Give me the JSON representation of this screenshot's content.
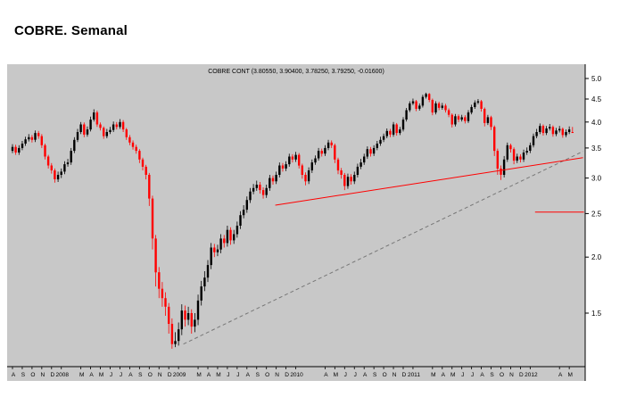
{
  "page": {
    "title": "COBRE. Semanal"
  },
  "chart": {
    "colors": {
      "panel_bg": "#c8c8c8",
      "up": "#000000",
      "down": "#ff0000",
      "axis": "#000000",
      "trend_red": "#ff0000",
      "trend_dashed": "#777777"
    }
  },
  "chart_data": {
    "type": "candlestick",
    "timeframe": "weekly",
    "scale": "logarithmic",
    "title": "COBRE CONT (3.80550, 3.90400, 3.78250, 3.79250, -0.01600)",
    "instrument": "COBRE CONT",
    "last_quote": {
      "open": 3.8055,
      "high": 3.904,
      "low": 3.7825,
      "close": 3.7925,
      "change": -0.016
    },
    "y_ticks": [
      5.0,
      4.5,
      4.0,
      3.5,
      3.0,
      2.5,
      2.0,
      1.5
    ],
    "ylim": [
      1.2,
      5.2
    ],
    "start_month": "2007-08",
    "end_month": "2012-05",
    "candles_per_month": 3,
    "x_labels": [
      [
        "A",
        0
      ],
      [
        "S",
        1
      ],
      [
        "O",
        2
      ],
      [
        "N",
        3
      ],
      [
        "D",
        4
      ],
      [
        "2008",
        5
      ],
      [
        "M",
        7
      ],
      [
        "A",
        8
      ],
      [
        "M",
        9
      ],
      [
        "J",
        10
      ],
      [
        "J",
        11
      ],
      [
        "A",
        12
      ],
      [
        "S",
        13
      ],
      [
        "O",
        14
      ],
      [
        "N",
        15
      ],
      [
        "D",
        16
      ],
      [
        "2009",
        17
      ],
      [
        "M",
        19
      ],
      [
        "A",
        20
      ],
      [
        "M",
        21
      ],
      [
        "J",
        22
      ],
      [
        "J",
        23
      ],
      [
        "A",
        24
      ],
      [
        "S",
        25
      ],
      [
        "O",
        26
      ],
      [
        "N",
        27
      ],
      [
        "D",
        28
      ],
      [
        "2010",
        29
      ],
      [
        "A",
        32
      ],
      [
        "M",
        33
      ],
      [
        "J",
        34
      ],
      [
        "J",
        35
      ],
      [
        "A",
        36
      ],
      [
        "S",
        37
      ],
      [
        "O",
        38
      ],
      [
        "N",
        39
      ],
      [
        "D",
        40
      ],
      [
        "2011",
        41
      ],
      [
        "M",
        43
      ],
      [
        "A",
        44
      ],
      [
        "M",
        45
      ],
      [
        "J",
        46
      ],
      [
        "J",
        47
      ],
      [
        "A",
        48
      ],
      [
        "S",
        49
      ],
      [
        "O",
        50
      ],
      [
        "N",
        51
      ],
      [
        "D",
        52
      ],
      [
        "2012",
        53
      ],
      [
        "A",
        56
      ],
      [
        "M",
        57
      ]
    ],
    "trendlines": [
      {
        "name": "long-term-rising-support",
        "style": "dashed",
        "color": "#777777",
        "from": {
          "month": 17.5,
          "price": 1.28
        },
        "to": {
          "month": 58.4,
          "price": 3.44
        }
      },
      {
        "name": "secondary-rising-support",
        "style": "solid",
        "color": "#ff0000",
        "from": {
          "month": 26.9,
          "price": 2.61
        },
        "to": {
          "month": 58.4,
          "price": 3.33
        }
      },
      {
        "name": "horizontal-support-level",
        "style": "solid",
        "color": "#ff0000",
        "from": {
          "month": 53.5,
          "price": 2.52
        },
        "to": {
          "month": 58.5,
          "price": 2.52
        }
      }
    ],
    "candles": [
      [
        3.45,
        3.57,
        3.41,
        3.52
      ],
      [
        3.52,
        3.56,
        3.38,
        3.42
      ],
      [
        3.42,
        3.55,
        3.38,
        3.5
      ],
      [
        3.5,
        3.63,
        3.46,
        3.58
      ],
      [
        3.58,
        3.71,
        3.54,
        3.66
      ],
      [
        3.66,
        3.76,
        3.62,
        3.7
      ],
      [
        3.7,
        3.74,
        3.6,
        3.65
      ],
      [
        3.65,
        3.83,
        3.61,
        3.78
      ],
      [
        3.78,
        3.82,
        3.67,
        3.72
      ],
      [
        3.72,
        3.76,
        3.5,
        3.55
      ],
      [
        3.55,
        3.58,
        3.3,
        3.35
      ],
      [
        3.35,
        3.38,
        3.15,
        3.2
      ],
      [
        3.2,
        3.24,
        3.07,
        3.12
      ],
      [
        3.12,
        3.15,
        2.93,
        2.98
      ],
      [
        2.98,
        3.1,
        2.94,
        3.05
      ],
      [
        3.05,
        3.15,
        3.0,
        3.1
      ],
      [
        3.1,
        3.27,
        3.06,
        3.22
      ],
      [
        3.22,
        3.31,
        3.18,
        3.25
      ],
      [
        3.25,
        3.5,
        3.21,
        3.45
      ],
      [
        3.45,
        3.7,
        3.41,
        3.65
      ],
      [
        3.65,
        3.86,
        3.61,
        3.8
      ],
      [
        3.8,
        4.0,
        3.76,
        3.95
      ],
      [
        3.95,
        3.99,
        3.7,
        3.75
      ],
      [
        3.75,
        3.91,
        3.71,
        3.85
      ],
      [
        3.85,
        4.11,
        3.81,
        4.05
      ],
      [
        4.05,
        4.27,
        4.01,
        4.2
      ],
      [
        4.2,
        4.24,
        3.9,
        3.95
      ],
      [
        3.95,
        3.99,
        3.83,
        3.88
      ],
      [
        3.88,
        3.91,
        3.67,
        3.72
      ],
      [
        3.72,
        3.86,
        3.68,
        3.8
      ],
      [
        3.8,
        3.9,
        3.76,
        3.84
      ],
      [
        3.84,
        4.01,
        3.8,
        3.95
      ],
      [
        3.95,
        4.0,
        3.85,
        3.9
      ],
      [
        3.9,
        4.06,
        3.86,
        4.0
      ],
      [
        4.0,
        4.04,
        3.8,
        3.85
      ],
      [
        3.85,
        3.88,
        3.65,
        3.7
      ],
      [
        3.7,
        3.74,
        3.55,
        3.6
      ],
      [
        3.6,
        3.64,
        3.47,
        3.52
      ],
      [
        3.52,
        3.56,
        3.4,
        3.45
      ],
      [
        3.45,
        3.48,
        3.24,
        3.3
      ],
      [
        3.3,
        3.33,
        3.12,
        3.18
      ],
      [
        3.18,
        3.21,
        2.98,
        3.05
      ],
      [
        3.05,
        3.08,
        2.6,
        2.7
      ],
      [
        2.7,
        2.74,
        2.08,
        2.2
      ],
      [
        2.2,
        2.24,
        1.72,
        1.85
      ],
      [
        1.85,
        1.9,
        1.62,
        1.7
      ],
      [
        1.7,
        1.76,
        1.55,
        1.62
      ],
      [
        1.62,
        1.67,
        1.48,
        1.55
      ],
      [
        1.55,
        1.58,
        1.35,
        1.42
      ],
      [
        1.42,
        1.46,
        1.25,
        1.28
      ],
      [
        1.28,
        1.36,
        1.26,
        1.3
      ],
      [
        1.3,
        1.43,
        1.27,
        1.38
      ],
      [
        1.38,
        1.57,
        1.34,
        1.52
      ],
      [
        1.52,
        1.56,
        1.4,
        1.45
      ],
      [
        1.45,
        1.55,
        1.41,
        1.5
      ],
      [
        1.5,
        1.53,
        1.35,
        1.4
      ],
      [
        1.4,
        1.5,
        1.36,
        1.45
      ],
      [
        1.45,
        1.65,
        1.41,
        1.6
      ],
      [
        1.6,
        1.77,
        1.56,
        1.72
      ],
      [
        1.72,
        1.86,
        1.68,
        1.8
      ],
      [
        1.8,
        1.97,
        1.76,
        1.92
      ],
      [
        1.92,
        2.15,
        1.88,
        2.1
      ],
      [
        2.1,
        2.14,
        2.0,
        2.05
      ],
      [
        2.05,
        2.13,
        2.01,
        2.08
      ],
      [
        2.08,
        2.25,
        2.04,
        2.2
      ],
      [
        2.2,
        2.24,
        2.1,
        2.15
      ],
      [
        2.15,
        2.35,
        2.11,
        2.3
      ],
      [
        2.3,
        2.33,
        2.13,
        2.18
      ],
      [
        2.18,
        2.3,
        2.14,
        2.25
      ],
      [
        2.25,
        2.4,
        2.21,
        2.35
      ],
      [
        2.35,
        2.53,
        2.31,
        2.48
      ],
      [
        2.48,
        2.61,
        2.44,
        2.55
      ],
      [
        2.55,
        2.73,
        2.51,
        2.68
      ],
      [
        2.68,
        2.85,
        2.64,
        2.8
      ],
      [
        2.8,
        2.91,
        2.76,
        2.85
      ],
      [
        2.85,
        2.96,
        2.81,
        2.9
      ],
      [
        2.9,
        2.94,
        2.77,
        2.82
      ],
      [
        2.82,
        2.86,
        2.7,
        2.75
      ],
      [
        2.75,
        2.9,
        2.71,
        2.85
      ],
      [
        2.85,
        3.05,
        2.81,
        3.0
      ],
      [
        3.0,
        3.04,
        2.9,
        2.95
      ],
      [
        2.95,
        3.1,
        2.91,
        3.05
      ],
      [
        3.05,
        3.25,
        3.01,
        3.2
      ],
      [
        3.2,
        3.24,
        3.1,
        3.15
      ],
      [
        3.15,
        3.27,
        3.11,
        3.22
      ],
      [
        3.22,
        3.4,
        3.18,
        3.35
      ],
      [
        3.35,
        3.39,
        3.25,
        3.3
      ],
      [
        3.3,
        3.43,
        3.26,
        3.38
      ],
      [
        3.38,
        3.41,
        3.15,
        3.2
      ],
      [
        3.2,
        3.23,
        2.99,
        3.05
      ],
      [
        3.05,
        3.09,
        2.89,
        2.95
      ],
      [
        2.95,
        3.17,
        2.91,
        3.12
      ],
      [
        3.12,
        3.3,
        3.08,
        3.25
      ],
      [
        3.25,
        3.37,
        3.21,
        3.32
      ],
      [
        3.32,
        3.5,
        3.28,
        3.45
      ],
      [
        3.45,
        3.49,
        3.35,
        3.4
      ],
      [
        3.4,
        3.55,
        3.36,
        3.5
      ],
      [
        3.5,
        3.65,
        3.46,
        3.6
      ],
      [
        3.6,
        3.64,
        3.5,
        3.55
      ],
      [
        3.55,
        3.58,
        3.24,
        3.3
      ],
      [
        3.3,
        3.33,
        3.06,
        3.12
      ],
      [
        3.12,
        3.16,
        2.99,
        3.05
      ],
      [
        3.05,
        3.08,
        2.82,
        2.88
      ],
      [
        2.88,
        3.07,
        2.84,
        3.02
      ],
      [
        3.02,
        3.06,
        2.9,
        2.95
      ],
      [
        2.95,
        3.1,
        2.91,
        3.05
      ],
      [
        3.05,
        3.23,
        3.01,
        3.18
      ],
      [
        3.18,
        3.31,
        3.14,
        3.25
      ],
      [
        3.25,
        3.4,
        3.21,
        3.35
      ],
      [
        3.35,
        3.53,
        3.31,
        3.48
      ],
      [
        3.48,
        3.52,
        3.35,
        3.4
      ],
      [
        3.4,
        3.55,
        3.36,
        3.5
      ],
      [
        3.5,
        3.63,
        3.46,
        3.58
      ],
      [
        3.58,
        3.71,
        3.54,
        3.65
      ],
      [
        3.65,
        3.77,
        3.61,
        3.72
      ],
      [
        3.72,
        3.87,
        3.68,
        3.82
      ],
      [
        3.82,
        3.86,
        3.7,
        3.75
      ],
      [
        3.75,
        4.0,
        3.71,
        3.95
      ],
      [
        3.95,
        3.98,
        3.73,
        3.78
      ],
      [
        3.78,
        3.9,
        3.74,
        3.85
      ],
      [
        3.85,
        4.1,
        3.81,
        4.05
      ],
      [
        4.05,
        4.3,
        4.01,
        4.25
      ],
      [
        4.25,
        4.45,
        4.21,
        4.4
      ],
      [
        4.4,
        4.51,
        4.36,
        4.45
      ],
      [
        4.45,
        4.48,
        4.23,
        4.28
      ],
      [
        4.28,
        4.4,
        4.24,
        4.35
      ],
      [
        4.35,
        4.6,
        4.31,
        4.55
      ],
      [
        4.55,
        4.65,
        4.51,
        4.62
      ],
      [
        4.62,
        4.64,
        4.43,
        4.48
      ],
      [
        4.48,
        4.51,
        4.14,
        4.2
      ],
      [
        4.2,
        4.45,
        4.16,
        4.4
      ],
      [
        4.4,
        4.44,
        4.25,
        4.3
      ],
      [
        4.3,
        4.41,
        4.26,
        4.35
      ],
      [
        4.35,
        4.39,
        4.2,
        4.25
      ],
      [
        4.25,
        4.29,
        4.1,
        4.15
      ],
      [
        4.15,
        4.18,
        3.89,
        3.95
      ],
      [
        3.95,
        4.17,
        3.91,
        4.12
      ],
      [
        4.12,
        4.16,
        4.0,
        4.05
      ],
      [
        4.05,
        4.15,
        4.01,
        4.1
      ],
      [
        4.1,
        4.14,
        3.97,
        4.02
      ],
      [
        4.02,
        4.25,
        3.98,
        4.2
      ],
      [
        4.2,
        4.37,
        4.16,
        4.32
      ],
      [
        4.32,
        4.47,
        4.28,
        4.42
      ],
      [
        4.42,
        4.5,
        4.38,
        4.45
      ],
      [
        4.45,
        4.48,
        4.22,
        4.28
      ],
      [
        4.28,
        4.31,
        3.91,
        3.98
      ],
      [
        3.98,
        4.15,
        3.94,
        4.1
      ],
      [
        4.1,
        4.13,
        3.84,
        3.9
      ],
      [
        3.9,
        3.93,
        3.36,
        3.45
      ],
      [
        3.45,
        3.49,
        3.05,
        3.15
      ],
      [
        3.15,
        3.2,
        2.97,
        3.05
      ],
      [
        3.05,
        3.36,
        3.01,
        3.3
      ],
      [
        3.3,
        3.6,
        3.26,
        3.55
      ],
      [
        3.55,
        3.58,
        3.42,
        3.48
      ],
      [
        3.48,
        3.51,
        3.22,
        3.28
      ],
      [
        3.28,
        3.4,
        3.24,
        3.35
      ],
      [
        3.35,
        3.39,
        3.25,
        3.3
      ],
      [
        3.3,
        3.47,
        3.26,
        3.42
      ],
      [
        3.42,
        3.51,
        3.38,
        3.45
      ],
      [
        3.45,
        3.6,
        3.41,
        3.55
      ],
      [
        3.55,
        3.77,
        3.51,
        3.72
      ],
      [
        3.72,
        3.86,
        3.68,
        3.8
      ],
      [
        3.8,
        3.97,
        3.76,
        3.92
      ],
      [
        3.92,
        3.95,
        3.73,
        3.78
      ],
      [
        3.78,
        3.92,
        3.74,
        3.87
      ],
      [
        3.87,
        3.96,
        3.83,
        3.9
      ],
      [
        3.9,
        3.93,
        3.71,
        3.76
      ],
      [
        3.76,
        3.88,
        3.72,
        3.83
      ],
      [
        3.83,
        3.92,
        3.79,
        3.86
      ],
      [
        3.86,
        3.89,
        3.69,
        3.74
      ],
      [
        3.74,
        3.85,
        3.7,
        3.8
      ],
      [
        3.8,
        3.91,
        3.76,
        3.85
      ],
      [
        3.8,
        3.9,
        3.78,
        3.79
      ]
    ]
  }
}
